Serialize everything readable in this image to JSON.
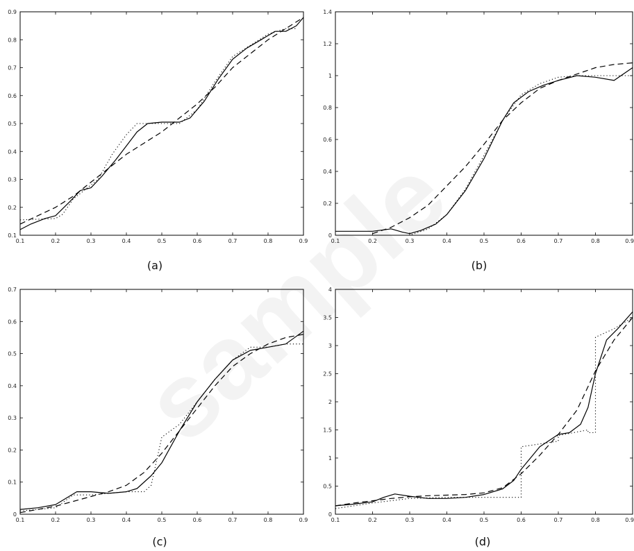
{
  "watermark_text": "sample",
  "chart_data": [
    {
      "type": "line",
      "caption": "(a)",
      "xlim": [
        0.1,
        0.9
      ],
      "ylim": [
        0.1,
        0.9
      ],
      "xticks": [
        0.1,
        0.2,
        0.3,
        0.4,
        0.5,
        0.6,
        0.7,
        0.8,
        0.9
      ],
      "xtick_labels": [
        "0.1",
        "0.2",
        "0.3",
        "0.4",
        "0.5",
        "0.6",
        "0.7",
        "0.8",
        "0.9"
      ],
      "yticks": [
        0.1,
        0.2,
        0.3,
        0.4,
        0.5,
        0.6,
        0.7,
        0.8,
        0.9
      ],
      "ytick_labels": [
        "0.1",
        "0.2",
        "0.3",
        "0.4",
        "0.5",
        "0.6",
        "0.7",
        "0.8",
        "0.9"
      ],
      "series": [
        {
          "style": "solid",
          "x": [
            0.1,
            0.13,
            0.17,
            0.2,
            0.24,
            0.27,
            0.3,
            0.33,
            0.37,
            0.4,
            0.43,
            0.46,
            0.5,
            0.55,
            0.58,
            0.62,
            0.66,
            0.7,
            0.74,
            0.78,
            0.82,
            0.85,
            0.88,
            0.9
          ],
          "y": [
            0.12,
            0.14,
            0.16,
            0.17,
            0.22,
            0.26,
            0.27,
            0.31,
            0.37,
            0.42,
            0.47,
            0.5,
            0.505,
            0.505,
            0.52,
            0.58,
            0.66,
            0.73,
            0.77,
            0.8,
            0.83,
            0.83,
            0.85,
            0.88
          ]
        },
        {
          "style": "dashed",
          "x": [
            0.1,
            0.15,
            0.2,
            0.25,
            0.3,
            0.35,
            0.4,
            0.45,
            0.5,
            0.55,
            0.6,
            0.65,
            0.7,
            0.75,
            0.8,
            0.85,
            0.9
          ],
          "y": [
            0.14,
            0.17,
            0.2,
            0.24,
            0.29,
            0.34,
            0.39,
            0.43,
            0.47,
            0.52,
            0.57,
            0.63,
            0.7,
            0.75,
            0.8,
            0.84,
            0.88
          ]
        },
        {
          "style": "dotted",
          "x": [
            0.1,
            0.2,
            0.22,
            0.25,
            0.28,
            0.32,
            0.36,
            0.4,
            0.43,
            0.46,
            0.5,
            0.55,
            0.6,
            0.65,
            0.7,
            0.75,
            0.8,
            0.85,
            0.88
          ],
          "y": [
            0.155,
            0.16,
            0.175,
            0.23,
            0.26,
            0.3,
            0.39,
            0.46,
            0.5,
            0.5,
            0.5,
            0.5,
            0.55,
            0.65,
            0.74,
            0.78,
            0.82,
            0.84,
            0.84
          ]
        }
      ]
    },
    {
      "type": "line",
      "caption": "(b)",
      "xlim": [
        0.1,
        0.9
      ],
      "ylim": [
        0,
        1.4
      ],
      "xticks": [
        0.1,
        0.2,
        0.3,
        0.4,
        0.5,
        0.6,
        0.7,
        0.8,
        0.9
      ],
      "xtick_labels": [
        "0.1",
        "0.2",
        "0.3",
        "0.4",
        "0.5",
        "0.6",
        "0.7",
        "0.8",
        "0.9"
      ],
      "yticks": [
        0,
        0.2,
        0.4,
        0.6,
        0.8,
        1,
        1.2,
        1.4
      ],
      "ytick_labels": [
        "0",
        "0.2",
        "0.4",
        "0.6",
        "0.8",
        "1",
        "1.2",
        "1.4"
      ],
      "series": [
        {
          "style": "solid",
          "x": [
            0.1,
            0.15,
            0.2,
            0.25,
            0.28,
            0.3,
            0.33,
            0.37,
            0.4,
            0.45,
            0.5,
            0.55,
            0.58,
            0.62,
            0.66,
            0.7,
            0.75,
            0.8,
            0.85,
            0.9
          ],
          "y": [
            0.025,
            0.025,
            0.025,
            0.04,
            0.02,
            0.01,
            0.03,
            0.07,
            0.13,
            0.28,
            0.48,
            0.72,
            0.83,
            0.9,
            0.94,
            0.97,
            1.0,
            0.99,
            0.97,
            1.05
          ]
        },
        {
          "style": "dashed",
          "x": [
            0.2,
            0.25,
            0.3,
            0.35,
            0.4,
            0.45,
            0.5,
            0.55,
            0.6,
            0.65,
            0.7,
            0.75,
            0.8,
            0.85,
            0.9
          ],
          "y": [
            0.01,
            0.05,
            0.11,
            0.19,
            0.31,
            0.43,
            0.57,
            0.72,
            0.83,
            0.92,
            0.97,
            1.01,
            1.05,
            1.07,
            1.08
          ]
        },
        {
          "style": "dotted",
          "x": [
            0.1,
            0.2,
            0.3,
            0.35,
            0.4,
            0.45,
            0.5,
            0.55,
            0.6,
            0.65,
            0.7,
            0.75,
            0.8,
            0.9
          ],
          "y": [
            0,
            0,
            0,
            0.04,
            0.13,
            0.29,
            0.5,
            0.72,
            0.88,
            0.95,
            0.99,
            1.0,
            1.0,
            1.0
          ]
        }
      ]
    },
    {
      "type": "line",
      "caption": "(c)",
      "xlim": [
        0.1,
        0.9
      ],
      "ylim": [
        0,
        0.7
      ],
      "xticks": [
        0.1,
        0.2,
        0.3,
        0.4,
        0.5,
        0.6,
        0.7,
        0.8,
        0.9
      ],
      "xtick_labels": [
        "0.1",
        "0.2",
        "0.3",
        "0.4",
        "0.5",
        "0.6",
        "0.7",
        "0.8",
        "0.9"
      ],
      "yticks": [
        0,
        0.1,
        0.2,
        0.3,
        0.4,
        0.5,
        0.6,
        0.7
      ],
      "ytick_labels": [
        "0",
        "0.1",
        "0.2",
        "0.3",
        "0.4",
        "0.5",
        "0.6",
        "0.7"
      ],
      "series": [
        {
          "style": "solid",
          "x": [
            0.1,
            0.15,
            0.2,
            0.23,
            0.26,
            0.3,
            0.35,
            0.4,
            0.43,
            0.47,
            0.5,
            0.55,
            0.6,
            0.65,
            0.7,
            0.75,
            0.8,
            0.85,
            0.9
          ],
          "y": [
            0.015,
            0.02,
            0.03,
            0.05,
            0.07,
            0.07,
            0.065,
            0.07,
            0.08,
            0.12,
            0.16,
            0.26,
            0.35,
            0.42,
            0.48,
            0.51,
            0.52,
            0.53,
            0.57
          ]
        },
        {
          "style": "dashed",
          "x": [
            0.1,
            0.15,
            0.2,
            0.25,
            0.3,
            0.35,
            0.4,
            0.45,
            0.5,
            0.55,
            0.6,
            0.65,
            0.7,
            0.75,
            0.8,
            0.85,
            0.9
          ],
          "y": [
            0.005,
            0.015,
            0.025,
            0.04,
            0.055,
            0.07,
            0.09,
            0.13,
            0.19,
            0.26,
            0.33,
            0.4,
            0.46,
            0.5,
            0.53,
            0.55,
            0.56
          ]
        },
        {
          "style": "dotted",
          "x": [
            0.1,
            0.2,
            0.25,
            0.3,
            0.4,
            0.45,
            0.47,
            0.5,
            0.55,
            0.6,
            0.65,
            0.7,
            0.75,
            0.8,
            0.85,
            0.9
          ],
          "y": [
            0.01,
            0.02,
            0.06,
            0.06,
            0.07,
            0.07,
            0.09,
            0.24,
            0.28,
            0.35,
            0.42,
            0.48,
            0.52,
            0.52,
            0.53,
            0.53
          ]
        }
      ]
    },
    {
      "type": "line",
      "caption": "(d)",
      "xlim": [
        0.1,
        0.9
      ],
      "ylim": [
        0,
        4
      ],
      "xticks": [
        0.1,
        0.2,
        0.3,
        0.4,
        0.5,
        0.6,
        0.7,
        0.8,
        0.9
      ],
      "xtick_labels": [
        "0.1",
        "0.2",
        "0.3",
        "0.4",
        "0.5",
        "0.6",
        "0.7",
        "0.8",
        "0.9"
      ],
      "yticks": [
        0,
        0.5,
        1,
        1.5,
        2,
        2.5,
        3,
        3.5,
        4
      ],
      "ytick_labels": [
        "0",
        "0.5",
        "1",
        "1.5",
        "2",
        "2.5",
        "3",
        "3.5",
        "4"
      ],
      "series": [
        {
          "style": "solid",
          "x": [
            0.1,
            0.15,
            0.2,
            0.23,
            0.26,
            0.3,
            0.35,
            0.4,
            0.45,
            0.5,
            0.55,
            0.58,
            0.6,
            0.65,
            0.7,
            0.73,
            0.76,
            0.78,
            0.8,
            0.83,
            0.86,
            0.9
          ],
          "y": [
            0.15,
            0.18,
            0.22,
            0.3,
            0.36,
            0.32,
            0.28,
            0.28,
            0.3,
            0.35,
            0.45,
            0.6,
            0.8,
            1.2,
            1.42,
            1.45,
            1.6,
            1.9,
            2.5,
            3.1,
            3.3,
            3.6
          ]
        },
        {
          "style": "dashed",
          "x": [
            0.1,
            0.15,
            0.2,
            0.25,
            0.3,
            0.35,
            0.4,
            0.45,
            0.5,
            0.55,
            0.6,
            0.65,
            0.7,
            0.75,
            0.8,
            0.85,
            0.9
          ],
          "y": [
            0.15,
            0.2,
            0.24,
            0.28,
            0.31,
            0.33,
            0.34,
            0.35,
            0.38,
            0.47,
            0.72,
            1.05,
            1.42,
            1.85,
            2.55,
            3.1,
            3.5
          ]
        },
        {
          "style": "dotted",
          "x": [
            0.1,
            0.2,
            0.3,
            0.4,
            0.6,
            0.6,
            0.7,
            0.7,
            0.78,
            0.78,
            0.8,
            0.8,
            0.85,
            0.9
          ],
          "y": [
            0.1,
            0.2,
            0.28,
            0.3,
            0.3,
            1.2,
            1.3,
            1.4,
            1.5,
            1.45,
            1.45,
            3.15,
            3.3,
            3.5
          ]
        }
      ]
    }
  ]
}
